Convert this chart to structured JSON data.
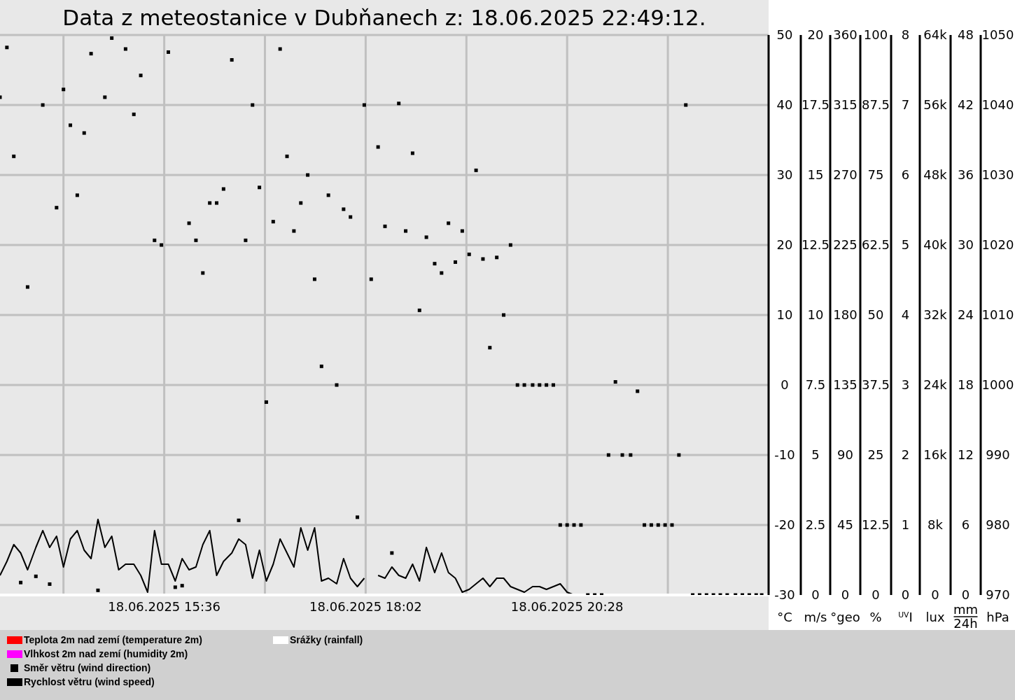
{
  "chart_data": {
    "type": "scatter",
    "title": "Data z meteostanice v Dubňanech z: 18.06.2025 22:49:12.",
    "xlim": [
      "2025-06-18T13:37",
      "2025-06-18T22:54"
    ],
    "xticks": [
      {
        "value": "2025-06-18T14:23",
        "label": null
      },
      {
        "value": "2025-06-18T15:36",
        "label": "18.06.2025 15:36"
      },
      {
        "value": "2025-06-18T16:49",
        "label": null
      },
      {
        "value": "2025-06-18T18:02",
        "label": "18.06.2025 18:02"
      },
      {
        "value": "2025-06-18T19:15",
        "label": null
      },
      {
        "value": "2025-06-18T20:28",
        "label": "18.06.2025 20:28"
      },
      {
        "value": "2025-06-18T21:41",
        "label": null
      }
    ],
    "x": [
      "2025-06-18T13:37",
      "2025-06-18T13:42",
      "2025-06-18T13:47",
      "2025-06-18T13:52",
      "2025-06-18T13:57",
      "2025-06-18T14:03",
      "2025-06-18T14:08",
      "2025-06-18T14:13",
      "2025-06-18T14:18",
      "2025-06-18T14:23",
      "2025-06-18T14:28",
      "2025-06-18T14:33",
      "2025-06-18T14:38",
      "2025-06-18T14:43",
      "2025-06-18T14:48",
      "2025-06-18T14:53",
      "2025-06-18T14:58",
      "2025-06-18T15:03",
      "2025-06-18T15:08",
      "2025-06-18T15:14",
      "2025-06-18T15:19",
      "2025-06-18T15:24",
      "2025-06-18T15:29",
      "2025-06-18T15:34",
      "2025-06-18T15:39",
      "2025-06-18T15:44",
      "2025-06-18T15:49",
      "2025-06-18T15:54",
      "2025-06-18T15:59",
      "2025-06-18T16:04",
      "2025-06-18T16:09",
      "2025-06-18T16:14",
      "2025-06-18T16:19",
      "2025-06-18T16:25",
      "2025-06-18T16:30",
      "2025-06-18T16:35",
      "2025-06-18T16:40",
      "2025-06-18T16:45",
      "2025-06-18T16:50",
      "2025-06-18T16:55",
      "2025-06-18T17:00",
      "2025-06-18T17:05",
      "2025-06-18T17:10",
      "2025-06-18T17:15",
      "2025-06-18T17:20",
      "2025-06-18T17:25",
      "2025-06-18T17:30",
      "2025-06-18T17:35",
      "2025-06-18T17:41",
      "2025-06-18T17:46",
      "2025-06-18T17:51",
      "2025-06-18T17:56",
      "2025-06-18T18:01",
      "2025-06-18T18:06",
      "2025-06-18T18:11",
      "2025-06-18T18:16",
      "2025-06-18T18:21",
      "2025-06-18T18:26",
      "2025-06-18T18:31",
      "2025-06-18T18:36",
      "2025-06-18T18:41",
      "2025-06-18T18:46",
      "2025-06-18T18:52",
      "2025-06-18T18:57",
      "2025-06-18T19:02",
      "2025-06-18T19:07",
      "2025-06-18T19:12",
      "2025-06-18T19:17",
      "2025-06-18T19:22",
      "2025-06-18T19:27",
      "2025-06-18T19:32",
      "2025-06-18T19:37",
      "2025-06-18T19:42",
      "2025-06-18T19:47",
      "2025-06-18T19:52",
      "2025-06-18T19:57",
      "2025-06-18T20:03",
      "2025-06-18T20:08",
      "2025-06-18T20:13",
      "2025-06-18T20:18",
      "2025-06-18T20:23",
      "2025-06-18T20:28",
      "2025-06-18T20:33",
      "2025-06-18T20:38",
      "2025-06-18T20:43",
      "2025-06-18T20:48",
      "2025-06-18T20:53",
      "2025-06-18T20:58",
      "2025-06-18T21:03",
      "2025-06-18T21:08",
      "2025-06-18T21:14",
      "2025-06-18T21:19",
      "2025-06-18T21:24",
      "2025-06-18T21:29",
      "2025-06-18T21:34",
      "2025-06-18T21:39",
      "2025-06-18T21:44",
      "2025-06-18T21:49",
      "2025-06-18T21:54",
      "2025-06-18T21:59",
      "2025-06-18T22:04",
      "2025-06-18T22:09",
      "2025-06-18T22:14",
      "2025-06-18T22:19",
      "2025-06-18T22:24",
      "2025-06-18T22:30",
      "2025-06-18T22:35",
      "2025-06-18T22:40",
      "2025-06-18T22:45",
      "2025-06-18T22:49"
    ],
    "ylim": [
      -30,
      50
    ],
    "yticks": [
      -30,
      -20,
      -10,
      0,
      10,
      20,
      30,
      40,
      50
    ],
    "ylabel": "°C",
    "y2lim": [
      0,
      20
    ],
    "y2ticks": [
      0,
      2.5,
      5,
      7.5,
      10,
      12.5,
      15,
      17.5,
      20
    ],
    "y2label": "m/s",
    "y3lim": [
      0,
      360
    ],
    "y3ticks": [
      0,
      45,
      90,
      135,
      180,
      225,
      270,
      315,
      360
    ],
    "y3label": "°geo",
    "annotations": [
      "0",
      "12.5",
      "25",
      "37.5",
      "50",
      "62.5",
      "75",
      "87.5",
      "100",
      "%",
      "0",
      "1",
      "2",
      "3",
      "4",
      "5",
      "6",
      "7",
      "8",
      "$^{UV}$I",
      "0",
      "8k",
      "16k",
      "24k",
      "32k",
      "40k",
      "48k",
      "56k",
      "64k",
      "lux",
      "0",
      "6",
      "12",
      "18",
      "24",
      "30",
      "36",
      "42",
      "48",
      "mm",
      "24h",
      "970",
      "980",
      "990",
      "1000",
      "1010",
      "1020",
      "1030",
      "1040",
      "1050",
      "hPa"
    ],
    "grid": true,
    "legend": "bottom",
    "series": [
      {
        "name": "Teplota 2m nad zemí (temperature 2m)",
        "type": "line",
        "color": "#ff0000",
        "values": [
          null,
          null,
          null,
          null,
          null,
          null,
          null,
          null,
          null,
          null,
          null,
          null,
          null,
          null,
          null,
          null,
          null,
          null,
          null,
          null,
          null,
          null,
          null,
          null,
          null,
          null,
          null,
          null,
          null,
          null,
          null,
          null,
          null,
          null,
          null,
          null,
          null,
          null,
          null,
          null,
          null,
          null,
          null,
          null,
          null,
          null,
          null,
          null,
          null,
          null,
          null,
          null,
          null,
          null,
          null,
          null,
          null,
          null,
          null,
          null,
          null,
          null,
          null,
          null,
          null,
          null,
          null,
          null,
          null,
          null,
          null,
          null,
          null,
          null,
          null,
          null,
          null,
          null,
          null,
          null,
          null,
          null,
          null,
          null,
          null,
          null,
          null,
          null,
          null,
          null,
          null,
          null,
          null,
          null,
          null,
          null,
          null,
          null,
          null,
          null,
          null,
          null,
          null,
          null,
          null,
          null,
          null,
          null,
          null,
          null
        ]
      },
      {
        "name": "Vlhkost 2m nad zemí (humidity 2m)",
        "type": "line",
        "color": "#ff00ff",
        "values": [
          null,
          null,
          null,
          null,
          null,
          null,
          null,
          null,
          null,
          null,
          null,
          null,
          null,
          null,
          null,
          null,
          null,
          null,
          null,
          null,
          null,
          null,
          null,
          null,
          null,
          null,
          null,
          null,
          null,
          null,
          null,
          null,
          null,
          null,
          null,
          null,
          null,
          null,
          null,
          null,
          null,
          null,
          null,
          null,
          null,
          null,
          null,
          null,
          null,
          null,
          null,
          null,
          null,
          null,
          null,
          null,
          null,
          null,
          null,
          null,
          null,
          null,
          null,
          null,
          null,
          null,
          null,
          null,
          null,
          null,
          null,
          null,
          null,
          null,
          null,
          null,
          null,
          null,
          null,
          null,
          null,
          null,
          null,
          null,
          null,
          null,
          null,
          null,
          null,
          null,
          null,
          null,
          null,
          null,
          null,
          null,
          null,
          null,
          null,
          null,
          null,
          null,
          null,
          null,
          null,
          null,
          null,
          null,
          null,
          null
        ]
      },
      {
        "name": "Směr větru (wind direction)",
        "color": "#000000",
        "axis": "y3",
        "marker": "square",
        "values": [
          320,
          352,
          282,
          8,
          198,
          12,
          315,
          7,
          249,
          325,
          302,
          257,
          297,
          348,
          3,
          320,
          358,
          null,
          351,
          309,
          334,
          null,
          228,
          225,
          349,
          5,
          6,
          239,
          228,
          207,
          252,
          252,
          261,
          344,
          48,
          228,
          315,
          262,
          124,
          240,
          351,
          282,
          234,
          252,
          270,
          203,
          147,
          257,
          135,
          248,
          243,
          50,
          315,
          203,
          288,
          237,
          27,
          316,
          234,
          284,
          183,
          230,
          213,
          207,
          239,
          214,
          234,
          219,
          273,
          216,
          159,
          217,
          180,
          225,
          135,
          135,
          135,
          135,
          135,
          135,
          45,
          45,
          45,
          45,
          0,
          0,
          0,
          90,
          137,
          90,
          90,
          131,
          45,
          45,
          45,
          45,
          45,
          90,
          315,
          0,
          0,
          0,
          0,
          0,
          0,
          0,
          0,
          0,
          0,
          0
        ]
      },
      {
        "name": "Rychlost větru (wind speed)",
        "type": "line",
        "color": "#000000",
        "axis": "y2",
        "marker": "none",
        "values": [
          0.7,
          1.2,
          1.8,
          1.5,
          0.9,
          1.7,
          2.3,
          1.7,
          2.1,
          1.0,
          2.0,
          2.3,
          1.6,
          1.3,
          2.7,
          1.7,
          2.1,
          0.9,
          1.1,
          1.1,
          0.7,
          0.1,
          2.3,
          1.1,
          1.1,
          0.5,
          1.3,
          0.9,
          1.0,
          1.8,
          2.3,
          0.7,
          1.2,
          1.5,
          2.0,
          1.8,
          0.6,
          1.6,
          0.5,
          1.1,
          2.0,
          1.5,
          1.0,
          2.4,
          1.6,
          2.4,
          0.5,
          0.6,
          0.4,
          1.3,
          0.6,
          0.3,
          0.6,
          null,
          0.7,
          0.6,
          1.0,
          0.7,
          0.6,
          1.1,
          0.5,
          1.7,
          0.8,
          1.5,
          0.8,
          0.6,
          0.1,
          0.2,
          0.4,
          0.6,
          0.3,
          0.6,
          0.6,
          0.3,
          0.2,
          0.1,
          0.3,
          0.3,
          0.2,
          0.3,
          0.4,
          0.1,
          0,
          null,
          null,
          null,
          null,
          null,
          null,
          null,
          null,
          null,
          null,
          null,
          null,
          null,
          null,
          null,
          null,
          null,
          null,
          null,
          null,
          null,
          null,
          null,
          null,
          null,
          null,
          null
        ]
      },
      {
        "name": "Srážky (rainfall)",
        "type": "line",
        "color": "#ffffff",
        "values": [
          null,
          null,
          null,
          null,
          null,
          null,
          null,
          null,
          null,
          null,
          null,
          null,
          null,
          null,
          null,
          null,
          null,
          null,
          null,
          null,
          null,
          null,
          null,
          null,
          null,
          null,
          null,
          null,
          null,
          null,
          null,
          null,
          null,
          null,
          null,
          null,
          null,
          null,
          null,
          null,
          null,
          null,
          null,
          null,
          null,
          null,
          null,
          null,
          null,
          null,
          null,
          null,
          null,
          null,
          null,
          null,
          null,
          null,
          null,
          null,
          null,
          null,
          null,
          null,
          null,
          null,
          null,
          null,
          null,
          null,
          null,
          null,
          null,
          null,
          null,
          null,
          null,
          null,
          null,
          null,
          null,
          null,
          null,
          null,
          null,
          null,
          null,
          null,
          null,
          null,
          null,
          null,
          null,
          null,
          null,
          null,
          null,
          null,
          null,
          null,
          null,
          null,
          null,
          null,
          null,
          null,
          null,
          null,
          null,
          null
        ]
      }
    ]
  }
}
